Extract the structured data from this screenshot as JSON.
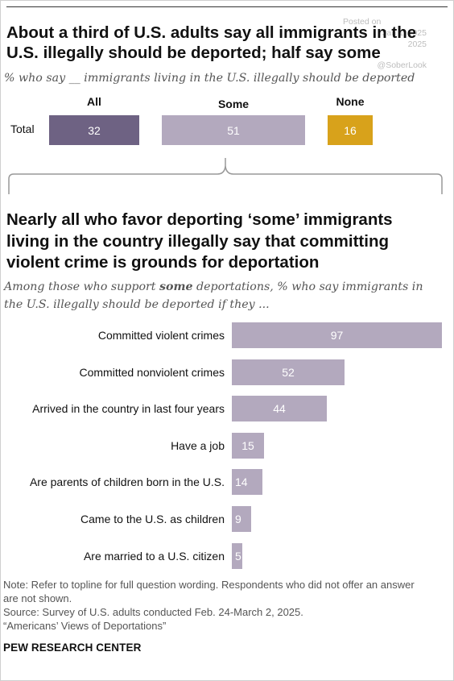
{
  "watermark": {
    "posted_on": "Posted on",
    "posted_date": "Jan 1, 2025",
    "posted_year": "2025",
    "handle": "@SoberLook"
  },
  "top": {
    "title_line1": "About a third of U.S. adults say all immigrants in the",
    "title_line2": "U.S. illegally should be deported; half say some",
    "subtitle": "% who say __ immigrants living in the U.S. illegally should be deported"
  },
  "bottom": {
    "title_line1": "Nearly all who favor deporting ‘some’ immigrants",
    "title_line2": "living in the country illegally say that committing",
    "title_line3": "violent crime is grounds for deportation",
    "subtitle_pre": "Among those who support ",
    "subtitle_bold": "some",
    "subtitle_post": " deportations, % who say immigrants in",
    "subtitle_line2": "the U.S. illegally should be deported if they ..."
  },
  "colors": {
    "all": "#6e6283",
    "some": "#b3a9be",
    "none": "#d8a21b",
    "reasons": "#b3a9be",
    "brace": "#999999"
  },
  "chart_data": [
    {
      "type": "bar",
      "orientation": "horizontal-stacked",
      "categories": [
        "Total"
      ],
      "series": [
        {
          "name": "All",
          "values": [
            32
          ]
        },
        {
          "name": "Some",
          "values": [
            51
          ]
        },
        {
          "name": "None",
          "values": [
            16
          ]
        }
      ],
      "title": "About a third of U.S. adults say all immigrants in the U.S. illegally should be deported; half say some"
    },
    {
      "type": "bar",
      "orientation": "horizontal",
      "categories": [
        "Committed violent crimes",
        "Committed nonviolent crimes",
        "Arrived in the country in last four years",
        "Have a job",
        "Are parents of children born in the U.S.",
        "Came to the U.S. as children",
        "Are married to a U.S. citizen"
      ],
      "values": [
        97,
        52,
        44,
        15,
        14,
        9,
        5
      ],
      "xlim": [
        0,
        100
      ],
      "title": "Nearly all who favor deporting ‘some’ immigrants living in the country illegally say that committing violent crime is grounds for deportation"
    }
  ],
  "footer": {
    "note_line1": "Note: Refer to topline for full question wording. Respondents who did not offer an answer",
    "note_line2": "are not shown.",
    "source": "Source: Survey of U.S. adults conducted Feb. 24-March 2, 2025.",
    "report": "“Americans’ Views of Deportations”",
    "brand": "PEW RESEARCH CENTER"
  }
}
